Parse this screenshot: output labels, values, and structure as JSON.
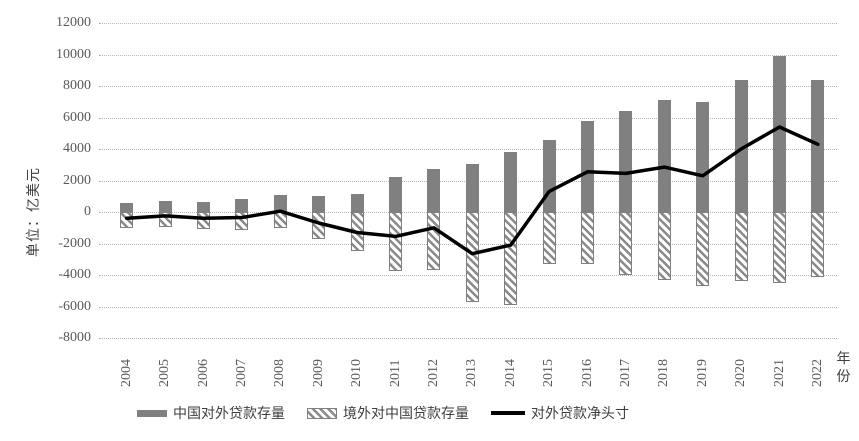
{
  "chart_data": {
    "type": "bar",
    "combo": "bar+line",
    "unit_label": "单位：亿美元",
    "xlabel": "年份",
    "categories": [
      "2004",
      "2005",
      "2006",
      "2007",
      "2008",
      "2009",
      "2010",
      "2011",
      "2012",
      "2013",
      "2014",
      "2015",
      "2016",
      "2017",
      "2018",
      "2019",
      "2020",
      "2021",
      "2022"
    ],
    "series": [
      {
        "name": "中国对外贷款存量",
        "type": "bar",
        "style": "solid",
        "values": [
          600,
          700,
          650,
          800,
          1050,
          1000,
          1150,
          2200,
          2700,
          3050,
          3800,
          4600,
          5800,
          6400,
          7100,
          7000,
          8400,
          9900,
          8400
        ]
      },
      {
        "name": "境外对中国贷款存量",
        "type": "bar",
        "style": "hatched",
        "values": [
          -1000,
          -950,
          -1050,
          -1150,
          -1000,
          -1700,
          -2450,
          -3750,
          -3700,
          -5700,
          -5900,
          -3300,
          -3300,
          -4000,
          -4300,
          -4700,
          -4400,
          -4500,
          -4100
        ]
      },
      {
        "name": "对外贷款净头寸",
        "type": "line",
        "values": [
          -400,
          -250,
          -400,
          -350,
          50,
          -700,
          -1300,
          -1550,
          -1000,
          -2650,
          -2100,
          1300,
          2550,
          2450,
          2850,
          2300,
          4000,
          5400,
          4300
        ]
      }
    ],
    "ylim": [
      -8000,
      12000
    ],
    "yticks": [
      12000,
      10000,
      8000,
      6000,
      4000,
      2000,
      0,
      -2000,
      -4000,
      -6000,
      -8000
    ],
    "grid": true,
    "legend_position": "bottom",
    "colors": {
      "bar_solid": "#808080",
      "bar_hatch": "#8a8a8a",
      "line": "#000000",
      "gridline": "#b5b5b5",
      "tick_text": "#595959",
      "legend_text": "#3f3f3f"
    }
  }
}
